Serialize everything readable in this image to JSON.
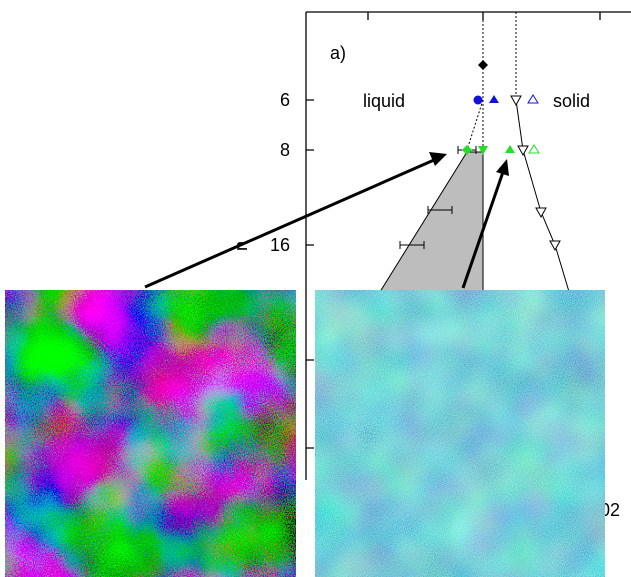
{
  "figure": {
    "panel_label": "a)",
    "region_labels": [
      "liquid",
      "solid"
    ],
    "y_axis_label": "n",
    "y_tick_labels": [
      "6",
      "8",
      "16"
    ],
    "x_tick_label_fragment": "02"
  }
}
